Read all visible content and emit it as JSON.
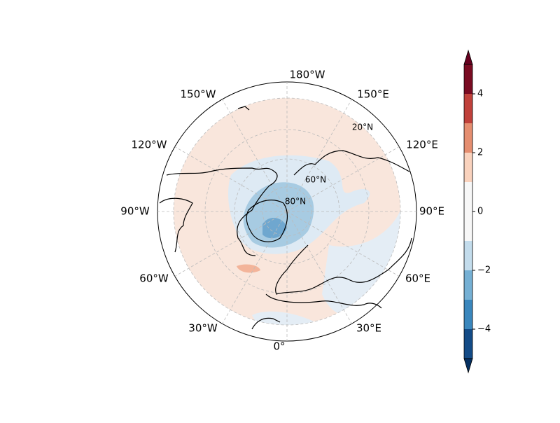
{
  "map": {
    "projection": "north-polar-stereographic",
    "lon_labels": [
      "180°W",
      "150°W",
      "150°E",
      "120°W",
      "120°E",
      "90°W",
      "90°E",
      "60°W",
      "60°E",
      "30°W",
      "30°E",
      "0°"
    ],
    "lat_labels": [
      "20°N",
      "60°N",
      "80°N"
    ]
  },
  "colorbar": {
    "levels": [
      -5,
      -4,
      -3,
      -2,
      -1,
      1,
      2,
      3,
      4,
      5
    ],
    "colors": [
      "#134b87",
      "#3a87bd",
      "#75b0d4",
      "#c3dcec",
      "#f7f7f7",
      "#f9d2bd",
      "#e58e70",
      "#c0413b",
      "#7a0b22"
    ],
    "under_color": "#053061",
    "over_color": "#67001f",
    "ticks": [
      {
        "value": -4,
        "label": "−4"
      },
      {
        "value": -2,
        "label": "−2"
      },
      0,
      2,
      4
    ]
  }
}
